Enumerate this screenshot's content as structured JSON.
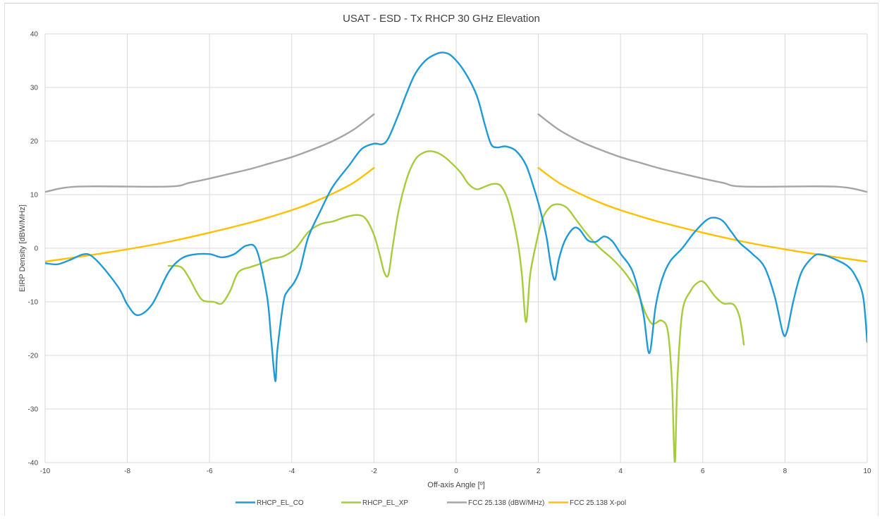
{
  "chart_data": {
    "type": "line",
    "title": "USAT - ESD - Tx RHCP 30 GHz Elevation",
    "xlabel": "Off-axis Angle [º]",
    "ylabel": "EIRP Density [dBW/MHz]",
    "xlim": [
      -10,
      10
    ],
    "ylim": [
      -40,
      40
    ],
    "x_ticks": [
      "-10",
      "-8",
      "-6",
      "-4",
      "-2",
      "0",
      "2",
      "4",
      "6",
      "8",
      "10"
    ],
    "y_ticks": [
      "40",
      "30",
      "20",
      "10",
      "0",
      "-10",
      "-20",
      "-30",
      "-40"
    ],
    "grid": true,
    "legend_position": "bottom",
    "series": [
      {
        "name": "RHCP_EL_CO",
        "color": "#1e9bd7",
        "points": [
          [
            -10,
            -2.8
          ],
          [
            -9.7,
            -3
          ],
          [
            -9.4,
            -2.2
          ],
          [
            -9.1,
            -1.2
          ],
          [
            -8.9,
            -1.3
          ],
          [
            -8.6,
            -3.5
          ],
          [
            -8.2,
            -7.5
          ],
          [
            -8.0,
            -10.5
          ],
          [
            -7.75,
            -12.5
          ],
          [
            -7.4,
            -10.5
          ],
          [
            -7.0,
            -4.5
          ],
          [
            -6.7,
            -2
          ],
          [
            -6.4,
            -1.2
          ],
          [
            -6.0,
            -1.1
          ],
          [
            -5.7,
            -1.7
          ],
          [
            -5.4,
            -1.1
          ],
          [
            -5.1,
            0.5
          ],
          [
            -4.85,
            -0.4
          ],
          [
            -4.6,
            -9
          ],
          [
            -4.5,
            -17
          ],
          [
            -4.4,
            -24.8
          ],
          [
            -4.35,
            -19
          ],
          [
            -4.2,
            -10
          ],
          [
            -4.1,
            -8
          ],
          [
            -3.95,
            -6.5
          ],
          [
            -3.8,
            -4
          ],
          [
            -3.6,
            2
          ],
          [
            -3.3,
            7
          ],
          [
            -3.0,
            11.5
          ],
          [
            -2.6,
            15.5
          ],
          [
            -2.3,
            18.5
          ],
          [
            -2.0,
            19.5
          ],
          [
            -1.8,
            19.4
          ],
          [
            -1.65,
            20.5
          ],
          [
            -1.4,
            25
          ],
          [
            -1.2,
            29
          ],
          [
            -1.0,
            32.5
          ],
          [
            -0.75,
            35
          ],
          [
            -0.5,
            36.2
          ],
          [
            -0.3,
            36.5
          ],
          [
            -0.1,
            35.8
          ],
          [
            0.2,
            33
          ],
          [
            0.5,
            28.5
          ],
          [
            0.7,
            23
          ],
          [
            0.85,
            19.4
          ],
          [
            1.0,
            18.8
          ],
          [
            1.2,
            19
          ],
          [
            1.45,
            18.2
          ],
          [
            1.7,
            15.5
          ],
          [
            1.9,
            11
          ],
          [
            2.05,
            7
          ],
          [
            2.2,
            2
          ],
          [
            2.3,
            -3
          ],
          [
            2.4,
            -5.9
          ],
          [
            2.5,
            -2
          ],
          [
            2.65,
            1.5
          ],
          [
            2.85,
            3.7
          ],
          [
            3.0,
            3.5
          ],
          [
            3.2,
            1.5
          ],
          [
            3.4,
            1.2
          ],
          [
            3.6,
            2.2
          ],
          [
            3.8,
            1.3
          ],
          [
            4.0,
            -1
          ],
          [
            4.3,
            -4.5
          ],
          [
            4.55,
            -12
          ],
          [
            4.7,
            -19.6
          ],
          [
            4.85,
            -11
          ],
          [
            5.0,
            -6
          ],
          [
            5.2,
            -2.5
          ],
          [
            5.5,
            0
          ],
          [
            5.8,
            3
          ],
          [
            6.1,
            5.3
          ],
          [
            6.3,
            5.7
          ],
          [
            6.5,
            5
          ],
          [
            6.7,
            3
          ],
          [
            6.9,
            1
          ],
          [
            7.2,
            -1
          ],
          [
            7.5,
            -3.5
          ],
          [
            7.75,
            -9
          ],
          [
            7.95,
            -15.8
          ],
          [
            8.05,
            -15.5
          ],
          [
            8.2,
            -10
          ],
          [
            8.4,
            -4.5
          ],
          [
            8.7,
            -1.5
          ],
          [
            8.9,
            -1.2
          ],
          [
            9.2,
            -2
          ],
          [
            9.5,
            -3.2
          ],
          [
            9.7,
            -5
          ],
          [
            9.9,
            -9
          ],
          [
            10.0,
            -17.5
          ]
        ]
      },
      {
        "name": "RHCP_EL_XP",
        "color": "#a7cc3b",
        "points": [
          [
            -7.0,
            -3.3
          ],
          [
            -6.7,
            -3.5
          ],
          [
            -6.5,
            -5.5
          ],
          [
            -6.2,
            -9.5
          ],
          [
            -5.9,
            -10
          ],
          [
            -5.7,
            -10.3
          ],
          [
            -5.5,
            -8
          ],
          [
            -5.3,
            -4.5
          ],
          [
            -5.0,
            -3.5
          ],
          [
            -4.8,
            -3
          ],
          [
            -4.5,
            -2
          ],
          [
            -4.2,
            -1.5
          ],
          [
            -3.9,
            0
          ],
          [
            -3.6,
            3
          ],
          [
            -3.3,
            4.5
          ],
          [
            -3.0,
            5
          ],
          [
            -2.7,
            5.8
          ],
          [
            -2.4,
            6.2
          ],
          [
            -2.2,
            5.5
          ],
          [
            -2.0,
            2.5
          ],
          [
            -1.85,
            -1.5
          ],
          [
            -1.75,
            -4.5
          ],
          [
            -1.65,
            -5
          ],
          [
            -1.55,
            0
          ],
          [
            -1.4,
            7
          ],
          [
            -1.2,
            13
          ],
          [
            -1.0,
            16.5
          ],
          [
            -0.8,
            17.8
          ],
          [
            -0.6,
            18.1
          ],
          [
            -0.4,
            17.6
          ],
          [
            -0.2,
            16.5
          ],
          [
            0.1,
            14.2
          ],
          [
            0.3,
            12
          ],
          [
            0.5,
            11
          ],
          [
            0.7,
            11.5
          ],
          [
            0.9,
            12
          ],
          [
            1.1,
            11.5
          ],
          [
            1.3,
            8
          ],
          [
            1.5,
            1
          ],
          [
            1.6,
            -5
          ],
          [
            1.7,
            -13.8
          ],
          [
            1.8,
            -5
          ],
          [
            1.95,
            1
          ],
          [
            2.1,
            5.5
          ],
          [
            2.3,
            7.8
          ],
          [
            2.5,
            8.2
          ],
          [
            2.7,
            7.5
          ],
          [
            2.9,
            5.5
          ],
          [
            3.2,
            2.5
          ],
          [
            3.5,
            0
          ],
          [
            3.8,
            -2
          ],
          [
            4.1,
            -4.5
          ],
          [
            4.4,
            -8
          ],
          [
            4.6,
            -12
          ],
          [
            4.75,
            -14
          ],
          [
            4.85,
            -14
          ],
          [
            5.0,
            -13.5
          ],
          [
            5.15,
            -15.5
          ],
          [
            5.25,
            -25
          ],
          [
            5.32,
            -40
          ],
          [
            5.38,
            -25
          ],
          [
            5.5,
            -12
          ],
          [
            5.7,
            -8
          ],
          [
            5.9,
            -6.3
          ],
          [
            6.05,
            -6.5
          ],
          [
            6.3,
            -9
          ],
          [
            6.5,
            -10.3
          ],
          [
            6.75,
            -10.5
          ],
          [
            6.9,
            -13
          ],
          [
            7.0,
            -18
          ]
        ]
      },
      {
        "name": "FCC 25.138 (dBW/MHz)",
        "color": "#a5a5a5",
        "points": [
          [
            -10,
            10.5
          ],
          [
            -9.2,
            11.5
          ],
          [
            -7,
            11.5
          ],
          [
            -6.5,
            12.2
          ],
          [
            -6,
            13
          ],
          [
            -5.5,
            13.9
          ],
          [
            -5,
            14.8
          ],
          [
            -4.5,
            15.9
          ],
          [
            -4,
            17.0
          ],
          [
            -3.5,
            18.4
          ],
          [
            -3,
            20.0
          ],
          [
            -2.5,
            22.1
          ],
          [
            -2,
            25
          ],
          null,
          [
            2,
            25
          ],
          [
            2.5,
            22.1
          ],
          [
            3,
            20.0
          ],
          [
            3.5,
            18.4
          ],
          [
            4,
            17.0
          ],
          [
            4.5,
            15.9
          ],
          [
            5,
            14.8
          ],
          [
            5.5,
            13.9
          ],
          [
            6,
            13
          ],
          [
            6.5,
            12.2
          ],
          [
            7,
            11.5
          ],
          [
            9.2,
            11.5
          ],
          [
            10,
            10.5
          ]
        ]
      },
      {
        "name": "FCC 25.138 X-pol",
        "color": "#ffc000",
        "points": [
          [
            -10,
            -2.5
          ],
          [
            -9,
            -1.4
          ],
          [
            -8,
            -0.2
          ],
          [
            -7,
            1.2
          ],
          [
            -6,
            2.9
          ],
          [
            -5,
            4.8
          ],
          [
            -4.5,
            5.9
          ],
          [
            -4,
            7.1
          ],
          [
            -3.5,
            8.5
          ],
          [
            -3,
            10.2
          ],
          [
            -2.5,
            12.2
          ],
          [
            -2,
            15
          ],
          null,
          [
            2,
            15
          ],
          [
            2.5,
            12.2
          ],
          [
            3,
            10.2
          ],
          [
            3.5,
            8.5
          ],
          [
            4,
            7.1
          ],
          [
            4.5,
            5.9
          ],
          [
            5,
            4.8
          ],
          [
            6,
            2.9
          ],
          [
            7,
            1.2
          ],
          [
            8,
            -0.2
          ],
          [
            9,
            -1.4
          ],
          [
            10,
            -2.5
          ]
        ]
      }
    ]
  }
}
